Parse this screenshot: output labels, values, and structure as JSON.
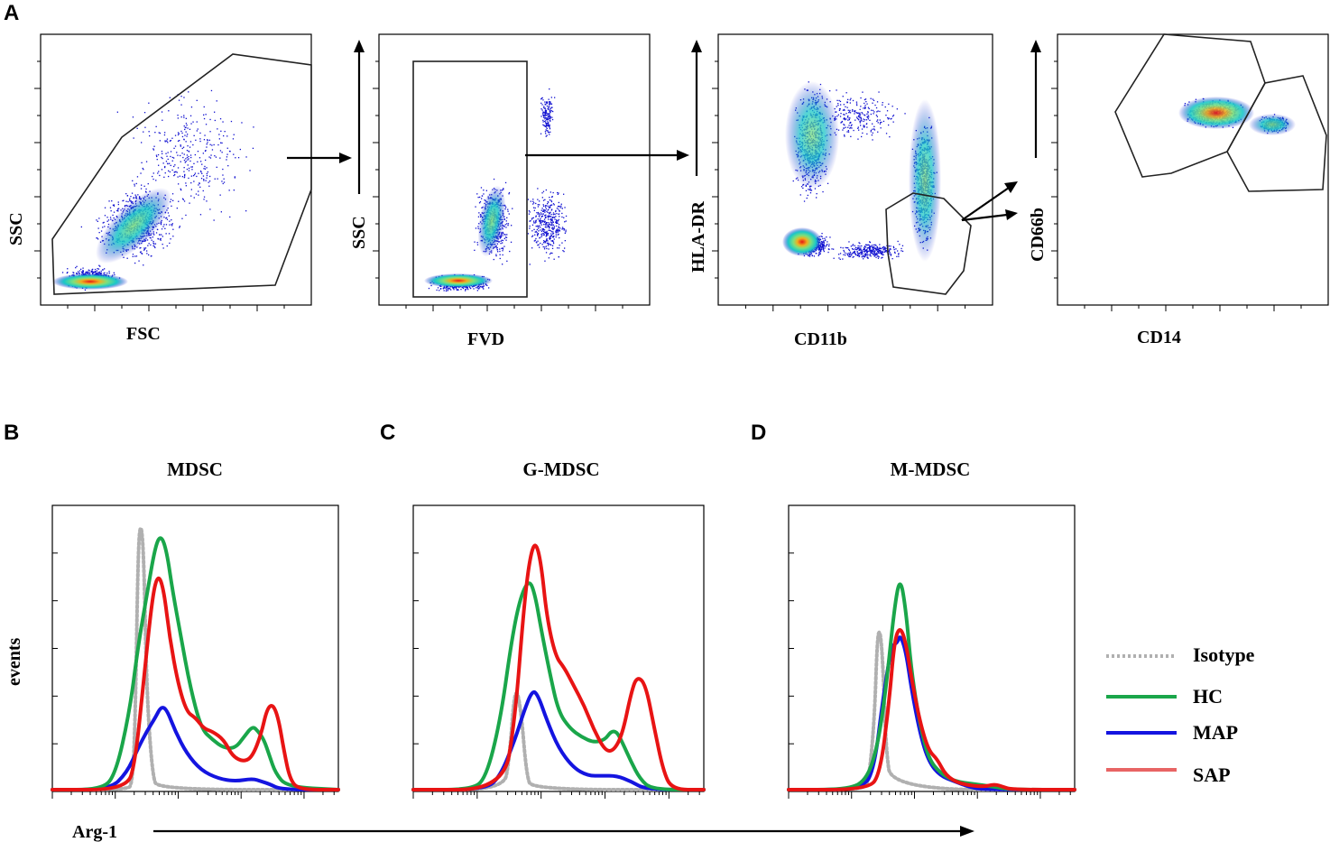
{
  "panel_letters": {
    "a": "A",
    "b": "B",
    "c": "C",
    "d": "D"
  },
  "colors": {
    "isotype": "#b0b0b0",
    "hc": "#1aa64a",
    "map": "#1414e0",
    "sap": "#e81414",
    "density_low": "#1010d0",
    "density_mid": "#19c8c8",
    "density_high": "#e81414"
  },
  "panel_a": {
    "plots": [
      {
        "xlabel": "FSC",
        "ylabel": "SSC"
      },
      {
        "xlabel": "FVD",
        "ylabel": "SSC"
      },
      {
        "xlabel": "CD11b",
        "ylabel": "HLA-DR"
      },
      {
        "xlabel": "CD14",
        "ylabel": "CD66b"
      }
    ]
  },
  "shared_xlabel": "Arg-1",
  "shared_ylabel": "events",
  "chart_data": [
    {
      "type": "line",
      "title": "MDSC",
      "xlabel": "Arg-1",
      "ylabel": "events",
      "x_scale": "log",
      "xlim": [
        0,
        1
      ],
      "ylim": [
        0,
        1
      ],
      "series": [
        {
          "name": "Isotype",
          "style": "dotted",
          "points": [
            [
              0.0,
              0.0
            ],
            [
              0.26,
              0.0
            ],
            [
              0.28,
              0.02
            ],
            [
              0.29,
              0.25
            ],
            [
              0.3,
              0.88
            ],
            [
              0.31,
              0.97
            ],
            [
              0.32,
              0.84
            ],
            [
              0.33,
              0.35
            ],
            [
              0.35,
              0.05
            ],
            [
              0.37,
              0.0
            ],
            [
              1.0,
              0.0
            ]
          ]
        },
        {
          "name": "HC",
          "style": "solid",
          "points": [
            [
              0.0,
              0.0
            ],
            [
              0.17,
              0.0
            ],
            [
              0.22,
              0.05
            ],
            [
              0.27,
              0.28
            ],
            [
              0.3,
              0.52
            ],
            [
              0.33,
              0.7
            ],
            [
              0.36,
              0.88
            ],
            [
              0.38,
              0.92
            ],
            [
              0.4,
              0.86
            ],
            [
              0.42,
              0.72
            ],
            [
              0.45,
              0.55
            ],
            [
              0.48,
              0.38
            ],
            [
              0.52,
              0.22
            ],
            [
              0.56,
              0.18
            ],
            [
              0.6,
              0.15
            ],
            [
              0.64,
              0.15
            ],
            [
              0.67,
              0.19
            ],
            [
              0.7,
              0.23
            ],
            [
              0.72,
              0.21
            ],
            [
              0.74,
              0.18
            ],
            [
              0.76,
              0.12
            ],
            [
              0.78,
              0.06
            ],
            [
              0.82,
              0.01
            ],
            [
              1.0,
              0.0
            ]
          ]
        },
        {
          "name": "MAP",
          "style": "solid",
          "points": [
            [
              0.0,
              0.0
            ],
            [
              0.2,
              0.0
            ],
            [
              0.26,
              0.06
            ],
            [
              0.3,
              0.15
            ],
            [
              0.33,
              0.21
            ],
            [
              0.36,
              0.26
            ],
            [
              0.38,
              0.3
            ],
            [
              0.4,
              0.29
            ],
            [
              0.43,
              0.21
            ],
            [
              0.47,
              0.13
            ],
            [
              0.52,
              0.07
            ],
            [
              0.58,
              0.04
            ],
            [
              0.64,
              0.03
            ],
            [
              0.7,
              0.04
            ],
            [
              0.73,
              0.03
            ],
            [
              0.76,
              0.02
            ],
            [
              0.8,
              0.0
            ],
            [
              1.0,
              0.0
            ]
          ]
        },
        {
          "name": "SAP",
          "style": "solid",
          "points": [
            [
              0.0,
              0.0
            ],
            [
              0.26,
              0.0
            ],
            [
              0.29,
              0.1
            ],
            [
              0.32,
              0.4
            ],
            [
              0.35,
              0.7
            ],
            [
              0.37,
              0.78
            ],
            [
              0.39,
              0.72
            ],
            [
              0.41,
              0.55
            ],
            [
              0.44,
              0.38
            ],
            [
              0.47,
              0.28
            ],
            [
              0.5,
              0.26
            ],
            [
              0.53,
              0.22
            ],
            [
              0.56,
              0.21
            ],
            [
              0.6,
              0.18
            ],
            [
              0.63,
              0.12
            ],
            [
              0.67,
              0.1
            ],
            [
              0.7,
              0.12
            ],
            [
              0.73,
              0.2
            ],
            [
              0.75,
              0.29
            ],
            [
              0.77,
              0.31
            ],
            [
              0.79,
              0.26
            ],
            [
              0.81,
              0.14
            ],
            [
              0.83,
              0.04
            ],
            [
              0.86,
              0.0
            ],
            [
              1.0,
              0.0
            ]
          ]
        }
      ]
    },
    {
      "type": "line",
      "title": "G-MDSC",
      "xlabel": "Arg-1",
      "ylabel": "events",
      "x_scale": "log",
      "xlim": [
        0,
        1
      ],
      "ylim": [
        0,
        1
      ],
      "series": [
        {
          "name": "Isotype",
          "style": "dotted",
          "points": [
            [
              0.0,
              0.0
            ],
            [
              0.31,
              0.0
            ],
            [
              0.33,
              0.1
            ],
            [
              0.35,
              0.38
            ],
            [
              0.37,
              0.3
            ],
            [
              0.39,
              0.05
            ],
            [
              0.41,
              0.0
            ],
            [
              1.0,
              0.0
            ]
          ]
        },
        {
          "name": "HC",
          "style": "solid",
          "points": [
            [
              0.0,
              0.0
            ],
            [
              0.2,
              0.0
            ],
            [
              0.25,
              0.04
            ],
            [
              0.3,
              0.25
            ],
            [
              0.34,
              0.55
            ],
            [
              0.37,
              0.7
            ],
            [
              0.4,
              0.76
            ],
            [
              0.42,
              0.7
            ],
            [
              0.44,
              0.58
            ],
            [
              0.47,
              0.42
            ],
            [
              0.5,
              0.28
            ],
            [
              0.54,
              0.22
            ],
            [
              0.58,
              0.19
            ],
            [
              0.62,
              0.17
            ],
            [
              0.66,
              0.18
            ],
            [
              0.68,
              0.21
            ],
            [
              0.7,
              0.21
            ],
            [
              0.72,
              0.17
            ],
            [
              0.75,
              0.1
            ],
            [
              0.78,
              0.04
            ],
            [
              0.82,
              0.0
            ],
            [
              1.0,
              0.0
            ]
          ]
        },
        {
          "name": "MAP",
          "style": "solid",
          "points": [
            [
              0.0,
              0.0
            ],
            [
              0.25,
              0.0
            ],
            [
              0.3,
              0.05
            ],
            [
              0.35,
              0.18
            ],
            [
              0.38,
              0.28
            ],
            [
              0.41,
              0.36
            ],
            [
              0.43,
              0.34
            ],
            [
              0.46,
              0.25
            ],
            [
              0.5,
              0.15
            ],
            [
              0.55,
              0.08
            ],
            [
              0.6,
              0.05
            ],
            [
              0.65,
              0.05
            ],
            [
              0.7,
              0.05
            ],
            [
              0.75,
              0.03
            ],
            [
              0.8,
              0.0
            ],
            [
              1.0,
              0.0
            ]
          ]
        },
        {
          "name": "SAP",
          "style": "solid",
          "points": [
            [
              0.0,
              0.0
            ],
            [
              0.31,
              0.0
            ],
            [
              0.35,
              0.25
            ],
            [
              0.38,
              0.65
            ],
            [
              0.4,
              0.83
            ],
            [
              0.42,
              0.9
            ],
            [
              0.44,
              0.82
            ],
            [
              0.46,
              0.62
            ],
            [
              0.49,
              0.48
            ],
            [
              0.52,
              0.44
            ],
            [
              0.55,
              0.38
            ],
            [
              0.59,
              0.3
            ],
            [
              0.62,
              0.22
            ],
            [
              0.66,
              0.14
            ],
            [
              0.69,
              0.14
            ],
            [
              0.72,
              0.2
            ],
            [
              0.75,
              0.35
            ],
            [
              0.77,
              0.41
            ],
            [
              0.8,
              0.38
            ],
            [
              0.83,
              0.22
            ],
            [
              0.86,
              0.07
            ],
            [
              0.89,
              0.0
            ],
            [
              1.0,
              0.0
            ]
          ]
        }
      ]
    },
    {
      "type": "line",
      "title": "M-MDSC",
      "xlabel": "Arg-1",
      "ylabel": "events",
      "x_scale": "log",
      "xlim": [
        0,
        1
      ],
      "ylim": [
        0,
        1
      ],
      "series": [
        {
          "name": "Isotype",
          "style": "dotted",
          "points": [
            [
              0.0,
              0.0
            ],
            [
              0.26,
              0.0
            ],
            [
              0.28,
              0.03
            ],
            [
              0.3,
              0.25
            ],
            [
              0.31,
              0.55
            ],
            [
              0.32,
              0.58
            ],
            [
              0.33,
              0.45
            ],
            [
              0.34,
              0.15
            ],
            [
              0.36,
              0.0
            ],
            [
              1.0,
              0.0
            ]
          ]
        },
        {
          "name": "HC",
          "style": "solid",
          "points": [
            [
              0.0,
              0.0
            ],
            [
              0.2,
              0.0
            ],
            [
              0.27,
              0.03
            ],
            [
              0.31,
              0.15
            ],
            [
              0.34,
              0.36
            ],
            [
              0.37,
              0.66
            ],
            [
              0.39,
              0.77
            ],
            [
              0.41,
              0.65
            ],
            [
              0.43,
              0.42
            ],
            [
              0.46,
              0.23
            ],
            [
              0.49,
              0.11
            ],
            [
              0.53,
              0.06
            ],
            [
              0.58,
              0.03
            ],
            [
              0.65,
              0.02
            ],
            [
              0.72,
              0.01
            ],
            [
              0.78,
              0.0
            ],
            [
              1.0,
              0.0
            ]
          ]
        },
        {
          "name": "MAP",
          "style": "solid",
          "points": [
            [
              0.0,
              0.0
            ],
            [
              0.26,
              0.0
            ],
            [
              0.3,
              0.08
            ],
            [
              0.33,
              0.33
            ],
            [
              0.36,
              0.52
            ],
            [
              0.38,
              0.53
            ],
            [
              0.39,
              0.56
            ],
            [
              0.41,
              0.5
            ],
            [
              0.43,
              0.36
            ],
            [
              0.46,
              0.2
            ],
            [
              0.49,
              0.1
            ],
            [
              0.53,
              0.05
            ],
            [
              0.58,
              0.03
            ],
            [
              0.63,
              0.01
            ],
            [
              0.68,
              0.0
            ],
            [
              1.0,
              0.0
            ]
          ]
        },
        {
          "name": "SAP",
          "style": "solid",
          "points": [
            [
              0.0,
              0.0
            ],
            [
              0.28,
              0.0
            ],
            [
              0.32,
              0.06
            ],
            [
              0.35,
              0.3
            ],
            [
              0.37,
              0.54
            ],
            [
              0.39,
              0.59
            ],
            [
              0.41,
              0.53
            ],
            [
              0.43,
              0.4
            ],
            [
              0.46,
              0.24
            ],
            [
              0.49,
              0.14
            ],
            [
              0.52,
              0.11
            ],
            [
              0.55,
              0.05
            ],
            [
              0.6,
              0.02
            ],
            [
              0.68,
              0.01
            ],
            [
              0.72,
              0.02
            ],
            [
              0.75,
              0.01
            ],
            [
              0.78,
              0.0
            ],
            [
              1.0,
              0.0
            ]
          ]
        }
      ]
    }
  ],
  "legend": {
    "entries": [
      {
        "label": "Isotype",
        "style": "dotted"
      },
      {
        "label": "HC",
        "style": "solid"
      },
      {
        "label": "MAP",
        "style": "solid"
      },
      {
        "label": "SAP",
        "style": "solid"
      }
    ],
    "position": "right"
  }
}
